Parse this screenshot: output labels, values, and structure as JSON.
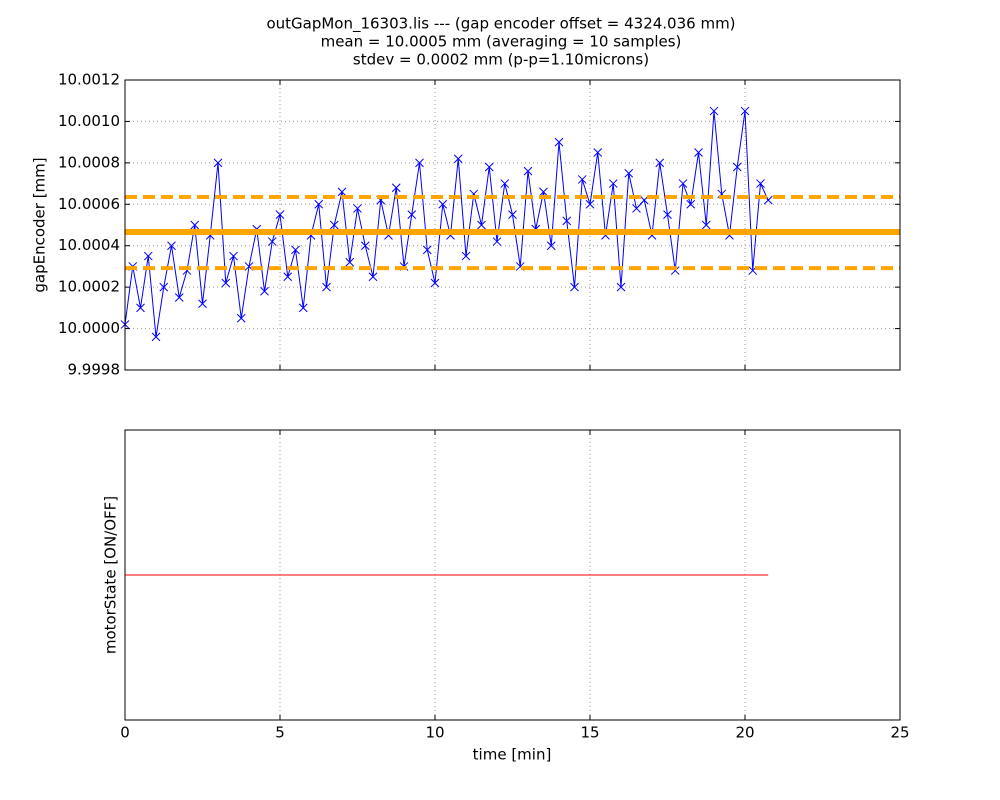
{
  "chart_data": [
    {
      "type": "line",
      "title": [
        "outGapMon_16303.lis --- (gap encoder offset = 4324.036 mm)",
        "mean = 10.0005 mm (averaging = 10 samples)",
        "stdev = 0.0002 mm (p-p=1.10microns)"
      ],
      "ylabel": "gapEncoder [mm]",
      "xlim": [
        0,
        25
      ],
      "xticks": [
        0,
        5,
        10,
        15,
        20,
        25
      ],
      "ylim": [
        9.9998,
        10.0012
      ],
      "yticks": [
        9.9998,
        {
          "value": 10,
          "label": "10.0000"
        },
        10.0002,
        10.0004,
        10.0006,
        10.0008,
        {
          "value": 10.001,
          "label": "10.0010"
        },
        10.0012
      ],
      "grid": true,
      "series": [
        {
          "color": "#0000ff",
          "marker": "x",
          "x": [
            0,
            0.25,
            0.5,
            0.75,
            1,
            1.25,
            1.5,
            1.75,
            2,
            2.25,
            2.5,
            2.75,
            3,
            3.25,
            3.5,
            3.75,
            4,
            4.25,
            4.5,
            4.75,
            5,
            5.25,
            5.5,
            5.75,
            6,
            6.25,
            6.5,
            6.75,
            7,
            7.25,
            7.5,
            7.75,
            8,
            8.25,
            8.5,
            8.75,
            9,
            9.25,
            9.5,
            9.75,
            10,
            10.25,
            10.5,
            10.75,
            11,
            11.25,
            11.5,
            11.75,
            12,
            12.25,
            12.5,
            12.75,
            13,
            13.25,
            13.5,
            13.75,
            14,
            14.25,
            14.5,
            14.75,
            15,
            15.25,
            15.5,
            15.75,
            16,
            16.25,
            16.5,
            16.75,
            17,
            17.25,
            17.5,
            17.75,
            18,
            18.25,
            18.5,
            18.75,
            19,
            19.25,
            19.5,
            19.75,
            20,
            20.25,
            20.5,
            20.75
          ],
          "values": [
            10.00002,
            10.0003,
            10.0001,
            10.00035,
            9.99996,
            10.0002,
            10.0004,
            10.00015,
            10.00028,
            10.0005,
            10.00012,
            10.00045,
            10.0008,
            10.00022,
            10.00035,
            10.00005,
            10.0003,
            10.00048,
            10.00018,
            10.00042,
            10.00055,
            10.00025,
            10.00038,
            10.0001,
            10.00045,
            10.0006,
            10.0002,
            10.0005,
            10.00066,
            10.00032,
            10.00058,
            10.0004,
            10.00025,
            10.00062,
            10.00045,
            10.00068,
            10.0003,
            10.00055,
            10.0008,
            10.00038,
            10.00022,
            10.0006,
            10.00045,
            10.00082,
            10.00035,
            10.00065,
            10.0005,
            10.00078,
            10.00042,
            10.0007,
            10.00055,
            10.0003,
            10.00076,
            10.00048,
            10.00066,
            10.0004,
            10.0009,
            10.00052,
            10.0002,
            10.00072,
            10.0006,
            10.00085,
            10.00045,
            10.0007,
            10.0002,
            10.00075,
            10.00058,
            10.00062,
            10.00045,
            10.0008,
            10.00055,
            10.00028,
            10.0007,
            10.0006,
            10.00085,
            10.0005,
            10.00105,
            10.00065,
            10.00045,
            10.00078,
            10.00105,
            10.00028,
            10.0007,
            10.00062
          ]
        }
      ],
      "hlines": [
        {
          "value": 10.000466,
          "color": "orange",
          "style": "solid"
        },
        {
          "value": 10.000635,
          "color": "orange",
          "style": "dashed"
        },
        {
          "value": 10.000292,
          "color": "orange",
          "style": "dashed"
        }
      ]
    },
    {
      "type": "line",
      "xlabel": "time [min]",
      "ylabel": "motorState [ON/OFF]",
      "xlim": [
        0,
        25
      ],
      "xticks": [
        0,
        5,
        10,
        15,
        20,
        25
      ],
      "ylim": [
        -0.055,
        0.055
      ],
      "grid": true,
      "series": [
        {
          "color": "#ff0000",
          "x": [
            0,
            20.75
          ],
          "values": [
            0,
            0
          ]
        }
      ]
    }
  ]
}
